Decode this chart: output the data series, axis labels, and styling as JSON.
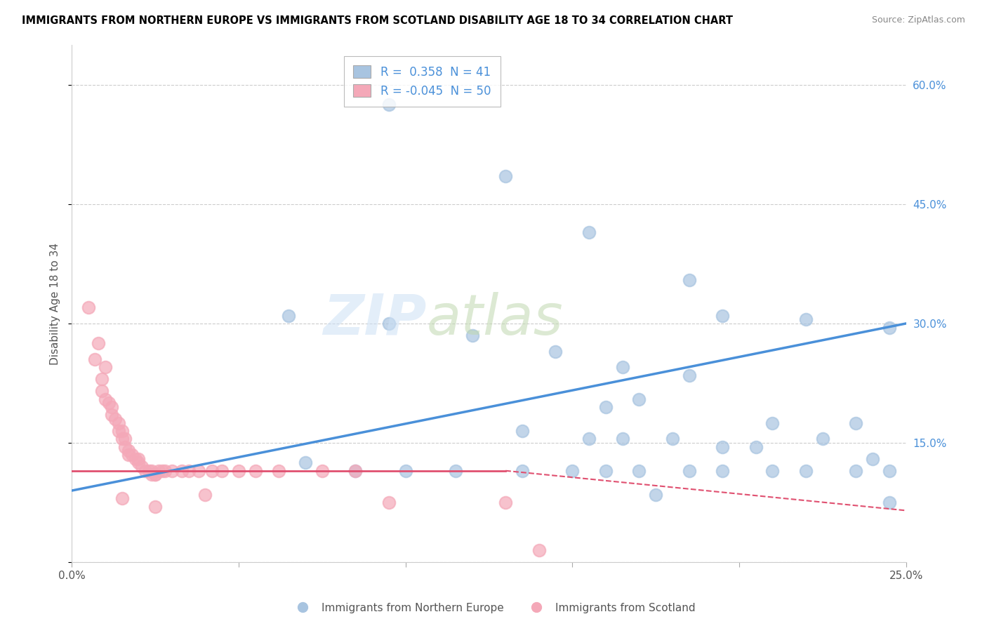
{
  "title": "IMMIGRANTS FROM NORTHERN EUROPE VS IMMIGRANTS FROM SCOTLAND DISABILITY AGE 18 TO 34 CORRELATION CHART",
  "source": "Source: ZipAtlas.com",
  "ylabel": "Disability Age 18 to 34",
  "xlim": [
    0.0,
    0.25
  ],
  "ylim": [
    0.0,
    0.65
  ],
  "R_blue": 0.358,
  "N_blue": 41,
  "R_pink": -0.045,
  "N_pink": 50,
  "blue_color": "#a8c4e0",
  "pink_color": "#f4a8b8",
  "blue_line_color": "#4a90d9",
  "pink_line_color": "#e05070",
  "blue_scatter": [
    [
      0.095,
      0.575
    ],
    [
      0.13,
      0.485
    ],
    [
      0.155,
      0.415
    ],
    [
      0.185,
      0.355
    ],
    [
      0.195,
      0.31
    ],
    [
      0.22,
      0.305
    ],
    [
      0.245,
      0.295
    ],
    [
      0.065,
      0.31
    ],
    [
      0.095,
      0.3
    ],
    [
      0.12,
      0.285
    ],
    [
      0.145,
      0.265
    ],
    [
      0.165,
      0.245
    ],
    [
      0.185,
      0.235
    ],
    [
      0.17,
      0.205
    ],
    [
      0.16,
      0.195
    ],
    [
      0.21,
      0.175
    ],
    [
      0.235,
      0.175
    ],
    [
      0.135,
      0.165
    ],
    [
      0.155,
      0.155
    ],
    [
      0.165,
      0.155
    ],
    [
      0.18,
      0.155
    ],
    [
      0.195,
      0.145
    ],
    [
      0.205,
      0.145
    ],
    [
      0.225,
      0.155
    ],
    [
      0.24,
      0.13
    ],
    [
      0.07,
      0.125
    ],
    [
      0.085,
      0.115
    ],
    [
      0.1,
      0.115
    ],
    [
      0.115,
      0.115
    ],
    [
      0.135,
      0.115
    ],
    [
      0.15,
      0.115
    ],
    [
      0.16,
      0.115
    ],
    [
      0.17,
      0.115
    ],
    [
      0.185,
      0.115
    ],
    [
      0.195,
      0.115
    ],
    [
      0.21,
      0.115
    ],
    [
      0.22,
      0.115
    ],
    [
      0.235,
      0.115
    ],
    [
      0.245,
      0.115
    ],
    [
      0.175,
      0.085
    ],
    [
      0.245,
      0.075
    ]
  ],
  "pink_scatter": [
    [
      0.005,
      0.32
    ],
    [
      0.008,
      0.275
    ],
    [
      0.007,
      0.255
    ],
    [
      0.01,
      0.245
    ],
    [
      0.009,
      0.23
    ],
    [
      0.009,
      0.215
    ],
    [
      0.01,
      0.205
    ],
    [
      0.011,
      0.2
    ],
    [
      0.012,
      0.195
    ],
    [
      0.012,
      0.185
    ],
    [
      0.013,
      0.18
    ],
    [
      0.014,
      0.175
    ],
    [
      0.014,
      0.165
    ],
    [
      0.015,
      0.165
    ],
    [
      0.015,
      0.155
    ],
    [
      0.016,
      0.155
    ],
    [
      0.016,
      0.145
    ],
    [
      0.017,
      0.14
    ],
    [
      0.017,
      0.135
    ],
    [
      0.018,
      0.135
    ],
    [
      0.019,
      0.13
    ],
    [
      0.02,
      0.13
    ],
    [
      0.02,
      0.125
    ],
    [
      0.021,
      0.12
    ],
    [
      0.022,
      0.115
    ],
    [
      0.023,
      0.115
    ],
    [
      0.024,
      0.115
    ],
    [
      0.024,
      0.11
    ],
    [
      0.025,
      0.11
    ],
    [
      0.025,
      0.11
    ],
    [
      0.026,
      0.115
    ],
    [
      0.027,
      0.115
    ],
    [
      0.028,
      0.115
    ],
    [
      0.03,
      0.115
    ],
    [
      0.033,
      0.115
    ],
    [
      0.035,
      0.115
    ],
    [
      0.038,
      0.115
    ],
    [
      0.042,
      0.115
    ],
    [
      0.045,
      0.115
    ],
    [
      0.05,
      0.115
    ],
    [
      0.055,
      0.115
    ],
    [
      0.062,
      0.115
    ],
    [
      0.075,
      0.115
    ],
    [
      0.085,
      0.115
    ],
    [
      0.095,
      0.075
    ],
    [
      0.04,
      0.085
    ],
    [
      0.13,
      0.075
    ],
    [
      0.14,
      0.015
    ],
    [
      0.015,
      0.08
    ],
    [
      0.025,
      0.07
    ]
  ],
  "blue_line": [
    [
      0.0,
      0.09
    ],
    [
      0.25,
      0.3
    ]
  ],
  "pink_line_solid": [
    [
      0.0,
      0.115
    ],
    [
      0.13,
      0.115
    ]
  ],
  "pink_line_dashed": [
    [
      0.13,
      0.115
    ],
    [
      0.25,
      0.065
    ]
  ]
}
